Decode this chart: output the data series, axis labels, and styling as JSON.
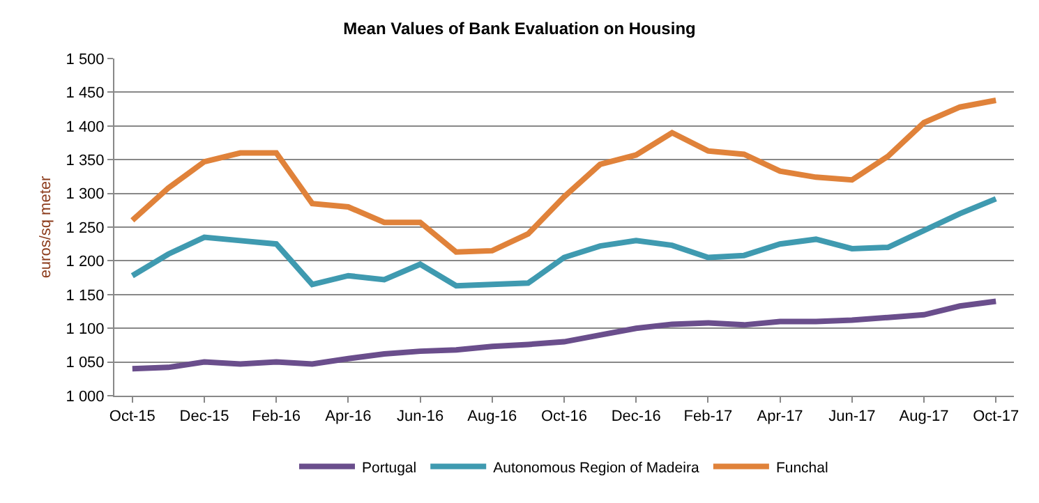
{
  "chart_data": {
    "type": "line",
    "title": "Mean Values of Bank Evaluation on Housing",
    "ylabel": "euros/sq meter",
    "categories": [
      "Oct-15",
      null,
      "Dec-15",
      null,
      "Feb-16",
      null,
      "Apr-16",
      null,
      "Jun-16",
      null,
      "Aug-16",
      null,
      "Oct-16",
      null,
      "Dec-16",
      null,
      "Feb-17",
      null,
      "Apr-17",
      null,
      "Jun-17",
      null,
      "Aug-17",
      null,
      "Oct-17"
    ],
    "series": [
      {
        "name": "Portugal",
        "color": "#6a4e8c",
        "values": [
          1040,
          1042,
          1050,
          1047,
          1050,
          1047,
          1055,
          1062,
          1066,
          1068,
          1073,
          1076,
          1080,
          1090,
          1100,
          1106,
          1108,
          1105,
          1110,
          1110,
          1112,
          1116,
          1120,
          1133,
          1140
        ]
      },
      {
        "name": "Autonomous Region of Madeira",
        "color": "#3f9ab0",
        "values": [
          1178,
          1210,
          1235,
          1230,
          1225,
          1165,
          1178,
          1172,
          1195,
          1163,
          1165,
          1167,
          1205,
          1222,
          1230,
          1223,
          1205,
          1208,
          1225,
          1232,
          1218,
          1220,
          1245,
          1270,
          1292
        ]
      },
      {
        "name": "Funchal",
        "color": "#e0823a",
        "values": [
          1260,
          1308,
          1347,
          1360,
          1360,
          1285,
          1280,
          1257,
          1257,
          1213,
          1215,
          1240,
          1295,
          1343,
          1357,
          1390,
          1363,
          1358,
          1333,
          1324,
          1320,
          1355,
          1405,
          1428,
          1438
        ]
      }
    ],
    "ylim": [
      1000,
      1500
    ],
    "yticks": [
      {
        "value": 1000,
        "label": "1 000"
      },
      {
        "value": 1050,
        "label": "1 050"
      },
      {
        "value": 1100,
        "label": "1 100"
      },
      {
        "value": 1150,
        "label": "1 150"
      },
      {
        "value": 1200,
        "label": "1 200"
      },
      {
        "value": 1250,
        "label": "1 250"
      },
      {
        "value": 1300,
        "label": "1 300"
      },
      {
        "value": 1350,
        "label": "1 350"
      },
      {
        "value": 1400,
        "label": "1 400"
      },
      {
        "value": 1450,
        "label": "1 450"
      },
      {
        "value": 1500,
        "label": "1 500"
      }
    ],
    "grid": "y",
    "legend": "bottom",
    "marker": "none",
    "line_style": "solid"
  }
}
